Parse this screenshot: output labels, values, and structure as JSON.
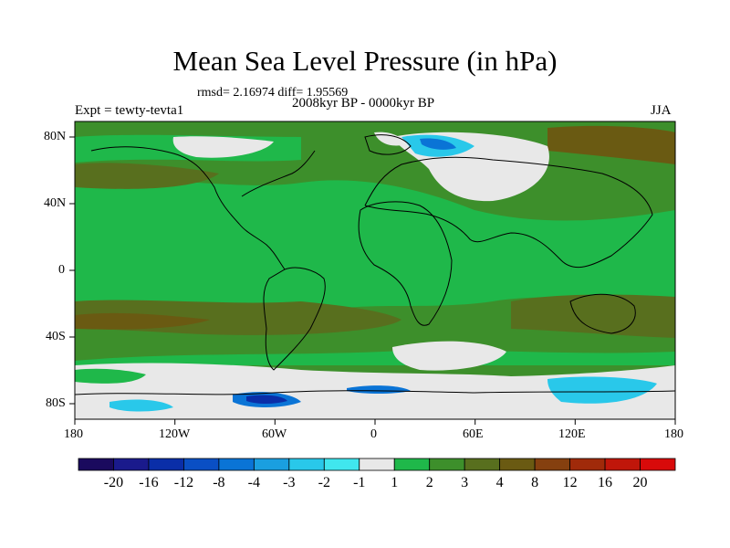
{
  "title": "Mean Sea Level Pressure (in hPa)",
  "stats": "rmsd= 2.16974 diff= 1.95569",
  "period": "2008kyr BP - 0000kyr BP",
  "experiment": "Expt = tewty-tevta1",
  "season": "JJA",
  "lat_labels": [
    "80N",
    "40N",
    "0",
    "40S",
    "80S"
  ],
  "lon_labels": [
    "180",
    "120W",
    "60W",
    "0",
    "60E",
    "120E",
    "180"
  ],
  "colorbar": {
    "labels": [
      "-20",
      "-16",
      "-12",
      "-8",
      "-4",
      "-3",
      "-2",
      "-1",
      "1",
      "2",
      "3",
      "4",
      "8",
      "12",
      "16",
      "20"
    ],
    "colors": [
      "#1a0a5e",
      "#1a1a8c",
      "#0a2ea8",
      "#0a4fc4",
      "#0a74d6",
      "#1a9fe0",
      "#29c8ea",
      "#40e6ee",
      "#e8e8e8",
      "#1fb84a",
      "#3d8f2b",
      "#586f1e",
      "#6a5a12",
      "#85400f",
      "#a02a0a",
      "#c0160a",
      "#d80a0a"
    ]
  },
  "fields": {
    "land": "#1fb84a",
    "green2": "#3d8f2b",
    "olive": "#586f1e",
    "brown": "#6a5a12",
    "white": "#e8e8e8",
    "cyan": "#29c8ea",
    "blue": "#0a74d6",
    "navy": "#0a2ea8"
  }
}
